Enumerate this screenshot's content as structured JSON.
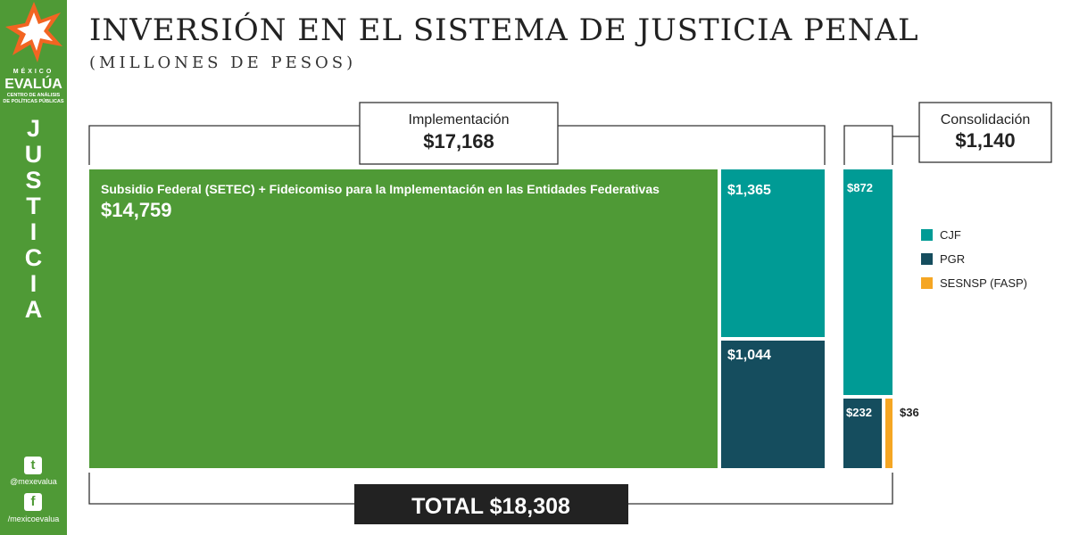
{
  "brand": {
    "top": "MÉXICO",
    "name": "EVALÚA",
    "sub1": "CENTRO DE ANÁLISIS",
    "sub2": "DE POLÍTICAS PÚBLICAS",
    "vertical": [
      "J",
      "U",
      "S",
      "T",
      "I",
      "C",
      "I",
      "A"
    ],
    "twitter": "@mexevalua",
    "facebook": "/mexicoevalua",
    "twitter_icon": "twitter-icon",
    "facebook_icon": "facebook-icon"
  },
  "title": "INVERSIÓN EN EL SISTEMA DE JUSTICIA PENAL",
  "subtitle": "(MILLONES DE PESOS)",
  "chart_data": {
    "type": "treemap",
    "unit": "millones de pesos",
    "groups": [
      {
        "name": "Implementación",
        "total": 17168,
        "total_label": "$17,168",
        "segments": [
          {
            "name": "Subsidio Federal (SETEC) + Fideicomiso para la Implementación en las Entidades Federativas",
            "value": 14759,
            "label": "$14,759",
            "color": "#4f9a36"
          },
          {
            "name": "CJF",
            "value": 1365,
            "label": "$1,365",
            "color": "#009b95"
          },
          {
            "name": "PGR",
            "value": 1044,
            "label": "$1,044",
            "color": "#154d5e"
          }
        ]
      },
      {
        "name": "Consolidación",
        "total": 1140,
        "total_label": "$1,140",
        "segments": [
          {
            "name": "CJF",
            "value": 872,
            "label": "$872",
            "color": "#009b95"
          },
          {
            "name": "PGR",
            "value": 232,
            "label": "$232",
            "color": "#154d5e"
          },
          {
            "name": "SESNSP (FASP)",
            "value": 36,
            "label": "$36",
            "color": "#f5a623"
          }
        ]
      }
    ],
    "total_label": "TOTAL $18,308",
    "legend": [
      {
        "name": "CJF",
        "color": "#009b95"
      },
      {
        "name": "PGR",
        "color": "#154d5e"
      },
      {
        "name": "SESNSP (FASP)",
        "color": "#f5a623"
      }
    ],
    "legend_position": "right"
  }
}
